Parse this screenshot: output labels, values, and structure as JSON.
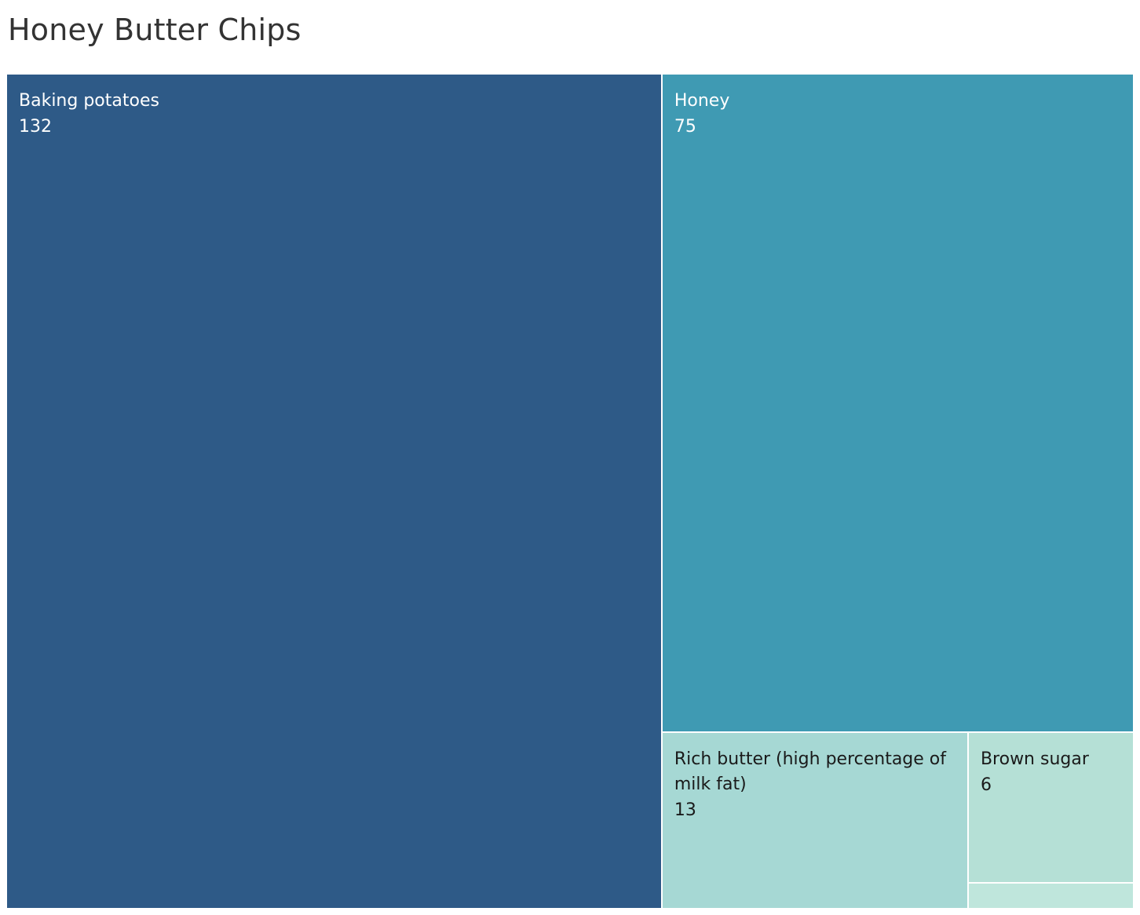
{
  "chart_data": {
    "type": "treemap",
    "title": "Honey Butter Chips",
    "items": [
      {
        "label": "Baking potatoes",
        "value": 132,
        "color": "#2e5a87",
        "text_color": "#ffffff"
      },
      {
        "label": "Honey",
        "value": 75,
        "color": "#3f9ab3",
        "text_color": "#ffffff"
      },
      {
        "label": "Rich butter (high percentage of milk fat)",
        "value": 13,
        "color": "#a6d8d4",
        "text_color": "#1a1a1a"
      },
      {
        "label": "Brown sugar",
        "value": 6,
        "color": "#b5e0d6",
        "text_color": "#1a1a1a"
      },
      {
        "label": "",
        "value": 1,
        "color": "#bfe6dc",
        "text_color": "#1a1a1a",
        "show_text": false
      }
    ]
  }
}
